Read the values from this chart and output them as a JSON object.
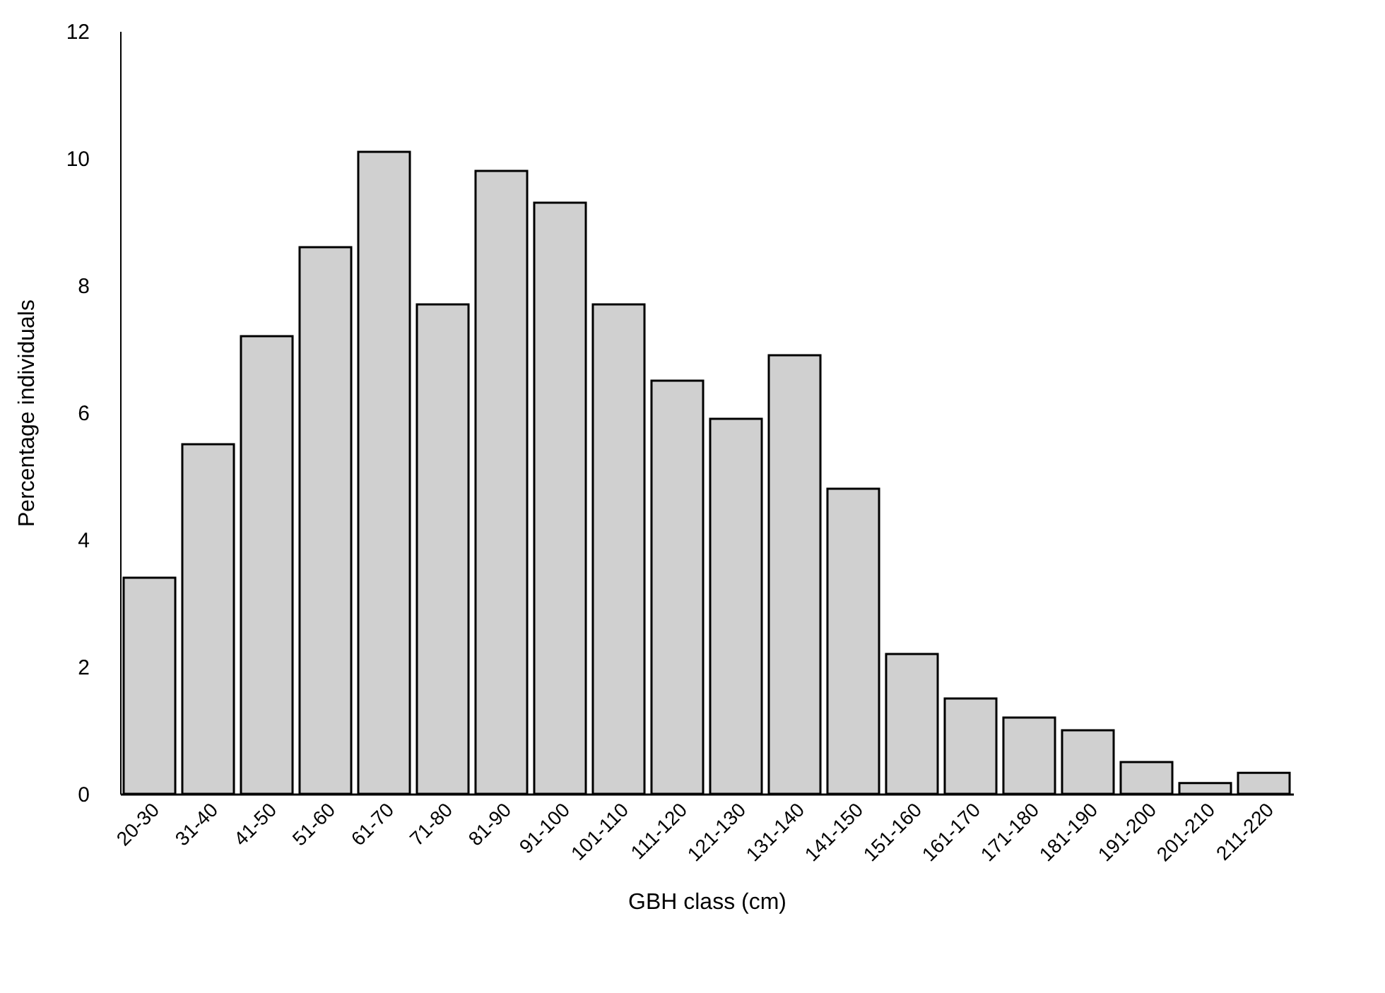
{
  "chart_data": {
    "type": "bar",
    "xlabel": "GBH class (cm)",
    "ylabel": "Percentage individuals",
    "categories": [
      "20-30",
      "31-40",
      "41-50",
      "51-60",
      "61-70",
      "71-80",
      "81-90",
      "91-100",
      "101-110",
      "111-120",
      "121-130",
      "131-140",
      "141-150",
      "151-160",
      "161-170",
      "171-180",
      "181-190",
      "191-200",
      "201-210",
      "211-220"
    ],
    "values": [
      3.4,
      5.5,
      7.2,
      8.6,
      10.1,
      7.7,
      9.8,
      9.3,
      7.7,
      6.5,
      5.9,
      6.9,
      4.8,
      2.2,
      1.5,
      1.2,
      1.0,
      0.5,
      0.17,
      0.33
    ],
    "color": "#d0d0d0",
    "ylim": [
      0,
      12
    ],
    "yticks": [
      0,
      2,
      4,
      6,
      8,
      10,
      12
    ],
    "grid": false,
    "legend": false
  }
}
